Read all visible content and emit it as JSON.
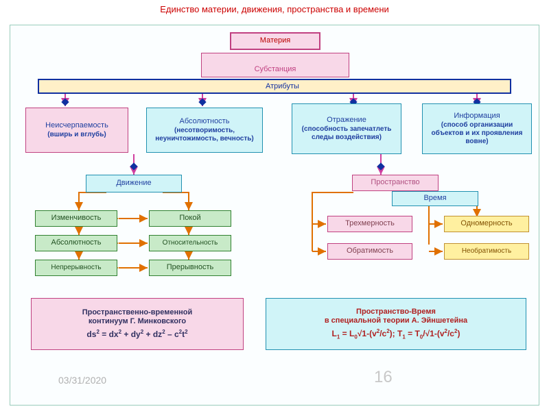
{
  "diagram": {
    "type": "flowchart",
    "title": "Единство материи, движения, пространства и времени",
    "colors": {
      "title": "#c00000",
      "canvas_border": "#99ccbb",
      "pink_fill": "#f8d8e8",
      "pink_border": "#c04080",
      "cyan_fill": "#d0f4f8",
      "cyan_border": "#2090b0",
      "green_fill": "#c8eac8",
      "green_border": "#308030",
      "yellow_fill": "#fff0a0",
      "yellow_border": "#c09030",
      "attr_fill": "#fff0c8",
      "attr_border": "#1030a0",
      "line_pink": "#d040a0",
      "line_orange": "#e07000",
      "text_blue": "#2040a0",
      "text_dark": "#303060",
      "date": "#b0b0b0",
      "pagenum": "#c0c0c0"
    },
    "nodes": {
      "matter": {
        "label": "Материя"
      },
      "substance": {
        "label": "Субстанция"
      },
      "attributes": {
        "label": "Атрибуты"
      },
      "attr1": {
        "l1": "Неисчерпаемость",
        "l2": "(вширь и вглубь)"
      },
      "attr2": {
        "l1": "Абсолютность",
        "l2": "(несотворимость, неуничтожимость, вечность)"
      },
      "attr3": {
        "l1": "Отражение",
        "l2": "(способность запечатлеть следы воздействия)"
      },
      "attr4": {
        "l1": "Информация",
        "l2": "(способ организации объектов и их проявления вовне)"
      },
      "movement": {
        "label": "Движение"
      },
      "space": {
        "label": "Пространство"
      },
      "time": {
        "label": "Время"
      },
      "m1": "Изменчивость",
      "m2": "Покой",
      "m3": "Абсолютность",
      "m4": "Относительность",
      "m5": "Непрерывность",
      "m6": "Прерывность",
      "s1": "Трехмерность",
      "s2": "Одномерность",
      "s3": "Обратимость",
      "s4": "Необратимость"
    },
    "formula_boxes": {
      "left": {
        "t1": "Пространственно-временной",
        "t2": "континуум Г. Минковского",
        "formula_html": "ds<span class='sup'>2</span> = dx<span class='sup'>2</span> + dy<span class='sup'>2</span> + dz<span class='sup'>2</span> – c<span class='sup'>2</span>t<span class='sup'>2</span>"
      },
      "right": {
        "t1": "Пространство-Время",
        "t2": "в специальной теории А. Эйншетейна",
        "formula_html": "L<span class='subsc'>1</span> = L<span class='subsc'>0</span>√1-(v<span class='sup'>2</span>/c<span class='sup'>2</span>); T<span class='subsc'>1</span> = T<span class='subsc'>0</span>/√1-(v<span class='sup'>2</span>/c<span class='sup'>2</span>)"
      }
    },
    "footer": {
      "date": "03/31/2020",
      "page": "16"
    },
    "fonts": {
      "title": 13,
      "body": 11,
      "small": 10,
      "formula": 12
    }
  }
}
